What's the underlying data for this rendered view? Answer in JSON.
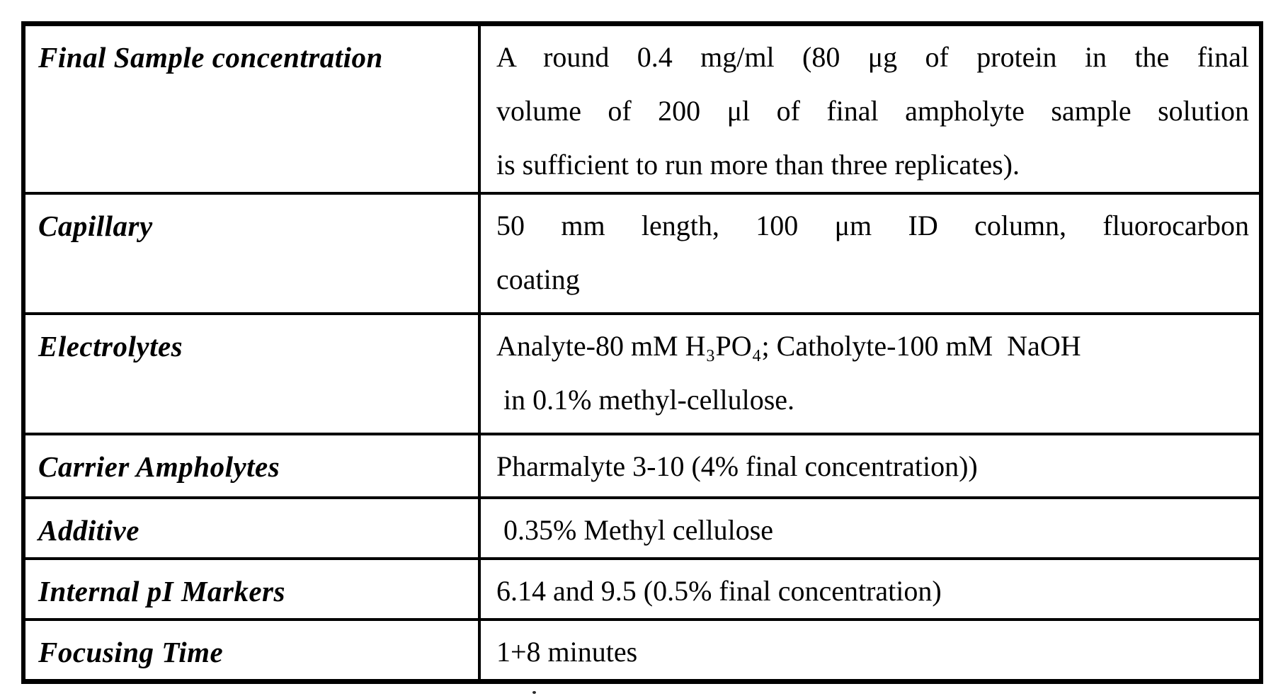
{
  "page": {
    "background_color": "#ffffff",
    "ink_color": "#000000"
  },
  "table": {
    "rows": [
      {
        "label": "Final Sample concentration",
        "value_lines": [
          {
            "text": "A round 0.4 mg/ml (80 μg of protein in the final",
            "spread": true
          },
          {
            "text": "volume of 200 μl of final ampholyte sample solution",
            "spread": true
          },
          {
            "text": "is sufficient to run more than three replicates).",
            "spread": false
          }
        ]
      },
      {
        "label": "Capillary",
        "value_lines": [
          {
            "text": "50 mm length, 100 μm ID column, fluorocarbon",
            "spread": true
          },
          {
            "text": "coating",
            "spread": false
          }
        ]
      },
      {
        "label": "Electrolytes",
        "value_lines": [
          {
            "text": "Analyte-80 mM H₃PO₄; Catholyte-100 mM  NaOH",
            "spread": false
          },
          {
            "text": " in 0.1% methyl-cellulose.",
            "spread": false
          }
        ]
      },
      {
        "label": "Carrier Ampholytes",
        "value_lines": [
          {
            "text": "Pharmalyte 3-10 (4% final concentration))",
            "spread": false
          }
        ]
      },
      {
        "label": "Additive",
        "value_lines": [
          {
            "text": " 0.35% Methyl cellulose",
            "spread": false
          }
        ]
      },
      {
        "label": "Internal pI Markers",
        "value_lines": [
          {
            "text": "6.14 and 9.5 (0.5% final concentration)",
            "spread": false
          }
        ]
      },
      {
        "label": "Focusing Time",
        "value_lines": [
          {
            "text": "1+8 minutes",
            "spread": false
          }
        ]
      }
    ]
  }
}
